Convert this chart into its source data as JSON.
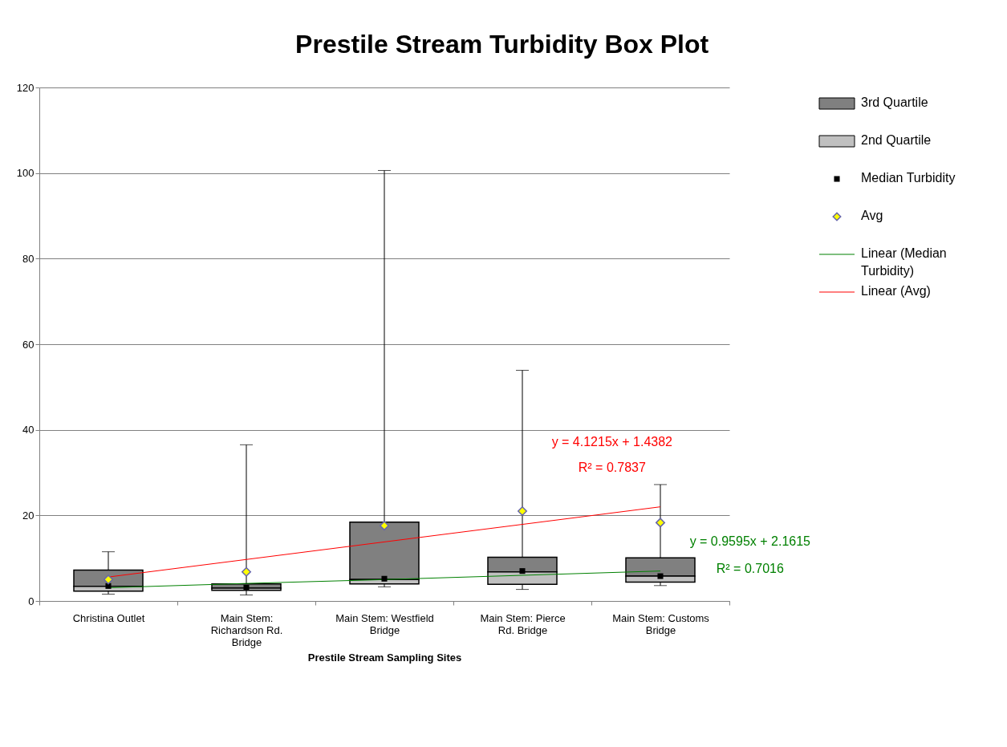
{
  "chart_data": {
    "type": "bar",
    "title": "Prestile Stream Turbidity Box Plot",
    "xlabel": "Prestile Stream Sampling Sites",
    "categories": [
      "Christina Outlet",
      "Main Stem: Richardson Rd. Bridge",
      "Main Stem: Westfield Bridge",
      "Main Stem: Pierce Rd. Bridge",
      "Main Stem: Customs Bridge"
    ],
    "series": [
      {
        "name": "3rd Quartile",
        "color": "#808080",
        "base": [
          3.4,
          3.0,
          5.0,
          6.8,
          5.8
        ],
        "values": [
          3.8,
          1.0,
          13.4,
          3.4,
          4.3
        ]
      },
      {
        "name": "2nd Quartile",
        "color": "#c0c0c0",
        "base": [
          2.3,
          2.5,
          4.0,
          3.9,
          4.4
        ],
        "values": [
          1.1,
          0.5,
          1.0,
          2.9,
          1.4
        ]
      },
      {
        "name": "Median Turbidity",
        "type": "scatter",
        "marker": "square",
        "color": "#000000",
        "values": [
          3.5,
          3.1,
          5.2,
          7.0,
          5.8
        ],
        "errors": [
          [
            1.6,
            11.5
          ],
          [
            1.4,
            36.5
          ],
          [
            3.3,
            100.6
          ],
          [
            2.7,
            53.9
          ],
          [
            3.6,
            27.2
          ]
        ]
      },
      {
        "name": "Avg",
        "type": "scatter",
        "marker": "diamond",
        "color": "#ffff00",
        "values": [
          5.0,
          6.8,
          17.6,
          21.0,
          18.3
        ]
      },
      {
        "name": "Linear (Median Turbidity)",
        "type": "line",
        "color": "#008000",
        "x": [
          "Christina Outlet",
          "Main Stem: Richardson Rd. Bridge",
          "Main Stem: Westfield Bridge",
          "Main Stem: Pierce Rd. Bridge",
          "Main Stem: Customs Bridge"
        ],
        "values": [
          3.1,
          4.1,
          5.0,
          6.0,
          7.0
        ]
      },
      {
        "name": "Linear (Avg)",
        "type": "line",
        "color": "#ff0000",
        "x": [
          "Christina Outlet",
          "Main Stem: Richardson Rd. Bridge",
          "Main Stem: Westfield Bridge",
          "Main Stem: Pierce Rd. Bridge",
          "Main Stem: Customs Bridge"
        ],
        "values": [
          5.6,
          9.7,
          13.8,
          17.9,
          22.0
        ]
      }
    ],
    "annotations": [
      "y = 4.1215x + 1.4382",
      "R² = 0.7837",
      "y = 0.9595x + 2.1615",
      "R² = 0.7016"
    ],
    "ylim": [
      0,
      120
    ],
    "yticks": [
      0,
      20,
      40,
      60,
      80,
      100,
      120
    ],
    "grid": "y",
    "legend": "right"
  }
}
